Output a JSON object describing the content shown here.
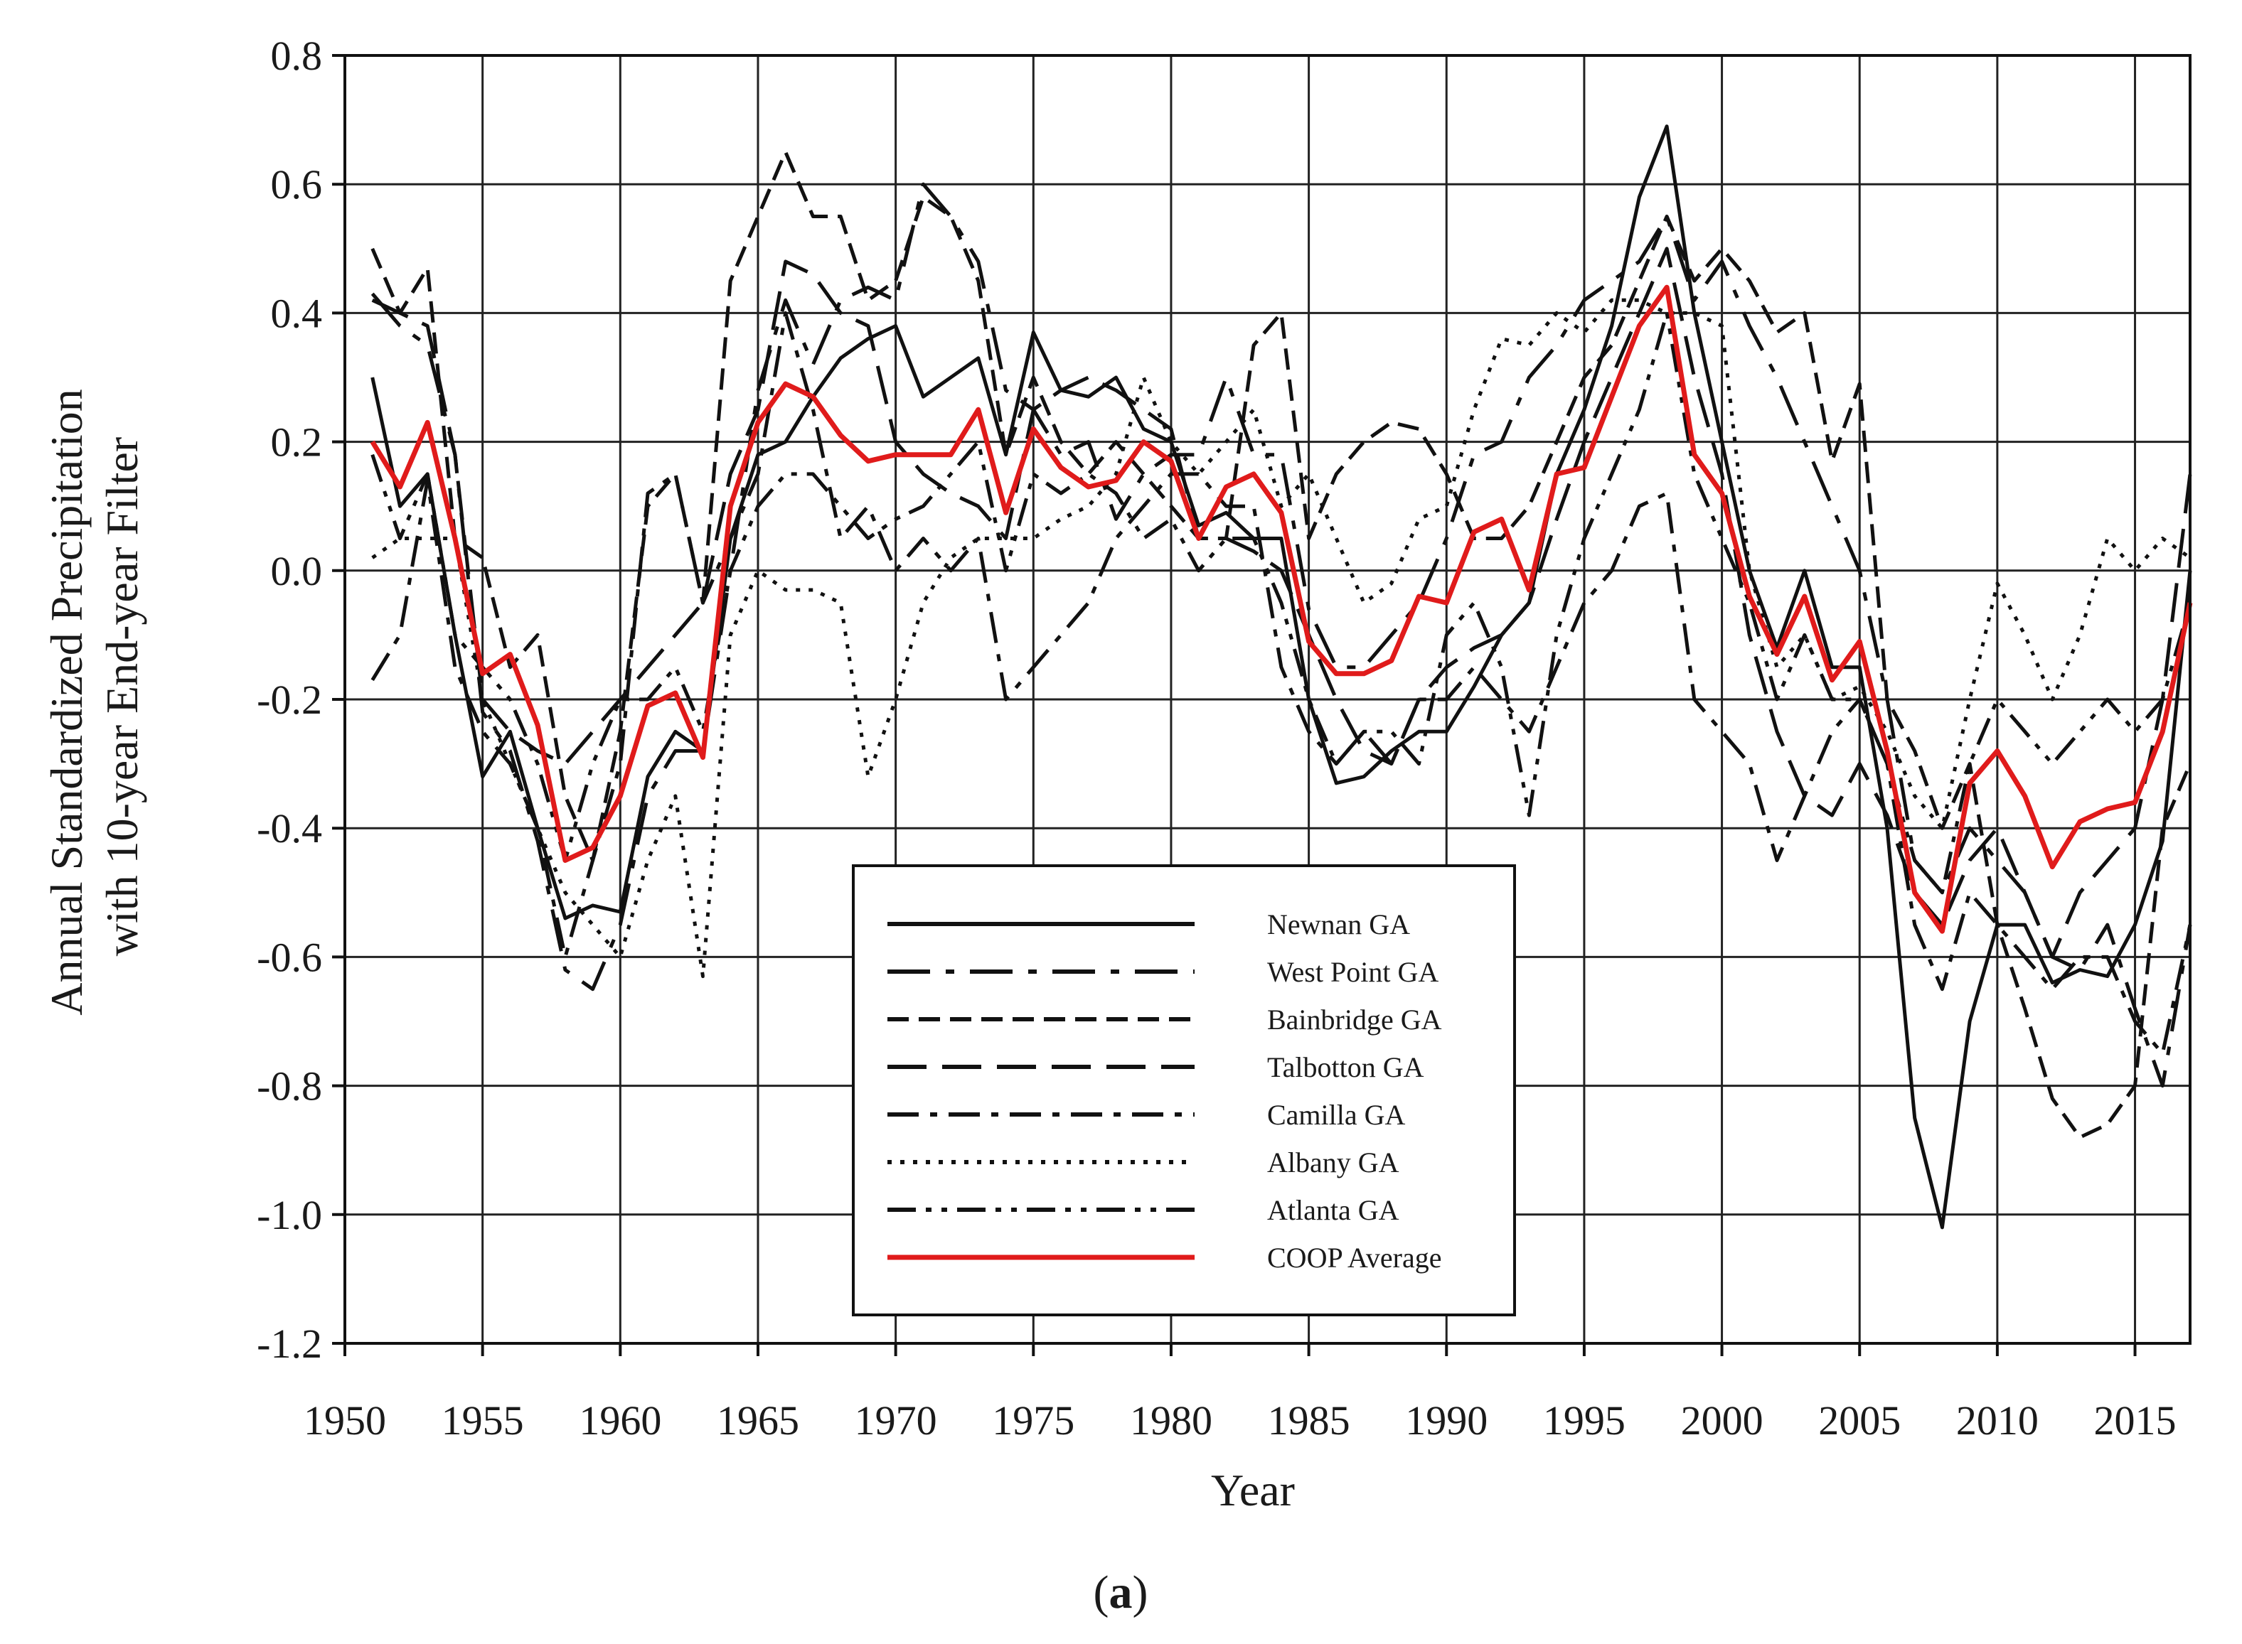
{
  "panel_label": {
    "open": "(",
    "letter": "a",
    "close": ")"
  },
  "chart_data": {
    "type": "line",
    "title": "",
    "xlabel": "Year",
    "ylabel_lines": [
      "Annual Standardized Precipitation",
      "with 10-year End-year Filter"
    ],
    "xlim": [
      1950,
      2017
    ],
    "ylim": [
      -1.2,
      0.8
    ],
    "xticks": [
      1950,
      1955,
      1960,
      1965,
      1970,
      1975,
      1980,
      1985,
      1990,
      1995,
      2000,
      2005,
      2010,
      2015
    ],
    "yticks": [
      -1.2,
      -1.0,
      -0.8,
      -0.6,
      -0.4,
      -0.2,
      0.0,
      0.2,
      0.4,
      0.6,
      0.8
    ],
    "ytick_labels": [
      "-1.2",
      "-1.0",
      "-0.8",
      "-0.6",
      "-0.4",
      "-0.2",
      "0.0",
      "0.2",
      "0.4",
      "0.6",
      "0.8"
    ],
    "xtick_labels": [
      "1950",
      "1955",
      "1960",
      "1965",
      "1970",
      "1975",
      "1980",
      "1985",
      "1990",
      "1995",
      "2000",
      "2005",
      "2010",
      "2015"
    ],
    "grid": true,
    "legend_position": "bottom-center",
    "x": [
      1951,
      1952,
      1953,
      1954,
      1955,
      1956,
      1957,
      1958,
      1959,
      1960,
      1961,
      1962,
      1963,
      1964,
      1965,
      1966,
      1967,
      1968,
      1969,
      1970,
      1971,
      1972,
      1973,
      1974,
      1975,
      1976,
      1977,
      1978,
      1979,
      1980,
      1981,
      1982,
      1983,
      1984,
      1985,
      1986,
      1987,
      1988,
      1989,
      1990,
      1991,
      1992,
      1993,
      1994,
      1995,
      1996,
      1997,
      1998,
      1999,
      2000,
      2001,
      2002,
      2003,
      2004,
      2005,
      2006,
      2007,
      2008,
      2009,
      2010,
      2011,
      2012,
      2013,
      2014,
      2015,
      2016,
      2017
    ],
    "series": [
      {
        "name": "Newnan GA",
        "color": "#111111",
        "dash": "solid",
        "values": [
          0.3,
          0.1,
          0.15,
          -0.1,
          -0.32,
          -0.25,
          -0.4,
          -0.54,
          -0.52,
          -0.53,
          -0.32,
          -0.25,
          -0.28,
          0.05,
          0.18,
          0.2,
          0.27,
          0.33,
          0.36,
          0.38,
          0.27,
          0.3,
          0.33,
          0.18,
          0.37,
          0.28,
          0.27,
          0.3,
          0.22,
          0.2,
          0.07,
          0.09,
          0.05,
          0.05,
          -0.2,
          -0.33,
          -0.32,
          -0.28,
          -0.25,
          -0.25,
          -0.18,
          -0.1,
          -0.05,
          0.15,
          0.25,
          0.38,
          0.58,
          0.69,
          0.4,
          0.2,
          0.0,
          -0.12,
          0.0,
          -0.15,
          -0.15,
          -0.4,
          -0.85,
          -1.02,
          -0.7,
          -0.55,
          -0.55,
          -0.64,
          -0.62,
          -0.63,
          -0.55,
          -0.42,
          0.0
        ]
      },
      {
        "name": "West Point GA",
        "color": "#111111",
        "dash": "60,22,12,22",
        "values": [
          0.43,
          0.38,
          0.35,
          0.18,
          -0.22,
          -0.28,
          -0.42,
          -0.62,
          -0.65,
          -0.55,
          -0.35,
          -0.28,
          -0.28,
          0.0,
          0.28,
          0.42,
          0.32,
          0.42,
          0.44,
          0.42,
          0.6,
          0.55,
          0.48,
          0.28,
          0.25,
          0.18,
          0.2,
          0.08,
          0.15,
          0.18,
          0.18,
          0.3,
          0.18,
          0.18,
          -0.06,
          -0.15,
          -0.15,
          -0.1,
          -0.05,
          0.05,
          0.18,
          0.2,
          0.3,
          0.35,
          0.42,
          0.45,
          0.48,
          0.55,
          0.42,
          0.48,
          0.38,
          0.3,
          0.2,
          0.1,
          0.0,
          -0.2,
          -0.45,
          -0.5,
          -0.4,
          -0.45,
          -0.5,
          -0.6,
          -0.62,
          -0.55,
          -0.68,
          -0.8,
          -0.55
        ]
      },
      {
        "name": "Bainbridge GA",
        "color": "#111111",
        "dash": "30,14",
        "values": [
          0.5,
          0.4,
          0.47,
          0.05,
          0.02,
          -0.15,
          -0.1,
          -0.35,
          -0.45,
          -0.25,
          0.1,
          0.15,
          -0.05,
          0.45,
          0.55,
          0.65,
          0.55,
          0.55,
          0.42,
          0.45,
          0.58,
          0.55,
          0.45,
          0.18,
          0.3,
          0.2,
          0.15,
          0.2,
          0.15,
          0.1,
          0.05,
          0.05,
          0.35,
          0.4,
          0.05,
          0.15,
          0.2,
          0.23,
          0.22,
          0.15,
          0.05,
          0.05,
          0.1,
          0.2,
          0.3,
          0.35,
          0.45,
          0.55,
          0.45,
          0.5,
          0.45,
          0.37,
          0.4,
          0.17,
          0.29,
          -0.2,
          -0.28,
          -0.4,
          -0.3,
          -0.55,
          -0.68,
          -0.82,
          -0.88,
          -0.86,
          -0.8,
          -0.4,
          -0.3
        ]
      },
      {
        "name": "Talbotton GA",
        "color": "#111111",
        "dash": "55,22",
        "values": [
          0.42,
          0.4,
          0.38,
          0.18,
          -0.2,
          -0.25,
          -0.28,
          -0.3,
          -0.25,
          -0.2,
          -0.15,
          -0.1,
          -0.05,
          0.15,
          0.25,
          0.48,
          0.46,
          0.4,
          0.38,
          0.2,
          0.15,
          0.12,
          0.1,
          0.05,
          0.25,
          0.28,
          0.3,
          0.28,
          0.25,
          0.22,
          0.05,
          0.05,
          0.03,
          0.0,
          -0.1,
          -0.2,
          -0.28,
          -0.3,
          -0.2,
          -0.15,
          -0.12,
          -0.1,
          -0.05,
          0.08,
          0.2,
          0.3,
          0.4,
          0.5,
          0.3,
          0.15,
          -0.1,
          -0.25,
          -0.35,
          -0.38,
          -0.3,
          -0.38,
          -0.5,
          -0.55,
          -0.45,
          -0.4,
          -0.5,
          -0.6,
          -0.5,
          -0.45,
          -0.4,
          -0.2,
          0.15
        ]
      },
      {
        "name": "Camilla GA",
        "color": "#111111",
        "dash": "44,16,10,16",
        "values": [
          -0.17,
          -0.1,
          0.14,
          -0.15,
          -0.25,
          -0.3,
          -0.4,
          -0.6,
          -0.45,
          -0.3,
          0.12,
          0.15,
          -0.05,
          0.05,
          0.15,
          0.4,
          0.25,
          0.05,
          0.1,
          0.0,
          0.05,
          0.0,
          0.05,
          -0.2,
          -0.15,
          -0.1,
          -0.05,
          0.05,
          0.1,
          0.15,
          0.15,
          0.1,
          0.1,
          -0.15,
          -0.25,
          -0.3,
          -0.25,
          -0.3,
          -0.2,
          -0.2,
          -0.15,
          -0.2,
          -0.25,
          -0.15,
          -0.05,
          0.0,
          0.1,
          0.12,
          -0.2,
          -0.25,
          -0.3,
          -0.45,
          -0.35,
          -0.25,
          -0.2,
          -0.3,
          -0.55,
          -0.65,
          -0.5,
          -0.55,
          -0.6,
          -0.65,
          -0.6,
          -0.6,
          -0.7,
          -0.75,
          -0.55
        ]
      },
      {
        "name": "Albany GA",
        "color": "#111111",
        "dash": "6,12",
        "values": [
          0.02,
          0.05,
          0.05,
          0.05,
          -0.2,
          -0.3,
          -0.4,
          -0.5,
          -0.55,
          -0.6,
          -0.45,
          -0.35,
          -0.63,
          -0.1,
          0.0,
          -0.03,
          -0.03,
          -0.05,
          -0.32,
          -0.2,
          -0.05,
          0.02,
          0.05,
          0.05,
          0.05,
          0.08,
          0.1,
          0.15,
          0.3,
          0.2,
          0.15,
          0.2,
          0.25,
          0.1,
          0.15,
          0.05,
          -0.05,
          -0.02,
          0.08,
          0.1,
          0.25,
          0.36,
          0.35,
          0.4,
          0.37,
          0.42,
          0.42,
          0.4,
          0.4,
          0.38,
          0.0,
          -0.15,
          -0.1,
          -0.2,
          -0.18,
          -0.25,
          -0.35,
          -0.4,
          -0.2,
          -0.02,
          -0.1,
          -0.2,
          -0.1,
          0.05,
          0.0,
          0.05,
          0.02
        ]
      },
      {
        "name": "Atlanta GA",
        "color": "#111111",
        "dash": "40,14,8,14,8,14",
        "values": [
          0.18,
          0.05,
          0.15,
          -0.1,
          -0.15,
          -0.2,
          -0.3,
          -0.45,
          -0.3,
          -0.2,
          -0.2,
          -0.15,
          -0.25,
          0.0,
          0.1,
          0.15,
          0.15,
          0.1,
          0.05,
          0.08,
          0.1,
          0.15,
          0.2,
          0.0,
          0.15,
          0.12,
          0.15,
          0.12,
          0.05,
          0.08,
          0.0,
          0.05,
          0.05,
          -0.05,
          -0.2,
          -0.3,
          -0.25,
          -0.25,
          -0.3,
          -0.1,
          -0.05,
          -0.15,
          -0.38,
          -0.1,
          0.05,
          0.15,
          0.25,
          0.4,
          0.15,
          0.05,
          -0.05,
          -0.2,
          -0.1,
          -0.2,
          -0.2,
          -0.3,
          -0.45,
          -0.5,
          -0.3,
          -0.2,
          -0.25,
          -0.3,
          -0.25,
          -0.2,
          -0.25,
          -0.2,
          -0.05
        ]
      },
      {
        "name": "COOP Average",
        "color": "#e01b1b",
        "dash": "solid",
        "values": [
          0.2,
          0.13,
          0.23,
          0.05,
          -0.16,
          -0.13,
          -0.24,
          -0.45,
          -0.43,
          -0.35,
          -0.21,
          -0.19,
          -0.29,
          0.1,
          0.23,
          0.29,
          0.27,
          0.21,
          0.17,
          0.18,
          0.18,
          0.18,
          0.25,
          0.09,
          0.22,
          0.16,
          0.13,
          0.14,
          0.2,
          0.17,
          0.05,
          0.13,
          0.15,
          0.09,
          -0.11,
          -0.16,
          -0.16,
          -0.14,
          -0.04,
          -0.05,
          0.06,
          0.08,
          -0.03,
          0.15,
          0.16,
          0.27,
          0.38,
          0.44,
          0.18,
          0.12,
          -0.04,
          -0.13,
          -0.04,
          -0.17,
          -0.11,
          -0.28,
          -0.5,
          -0.56,
          -0.33,
          -0.28,
          -0.35,
          -0.46,
          -0.39,
          -0.37,
          -0.36,
          -0.25,
          -0.05
        ]
      }
    ]
  }
}
